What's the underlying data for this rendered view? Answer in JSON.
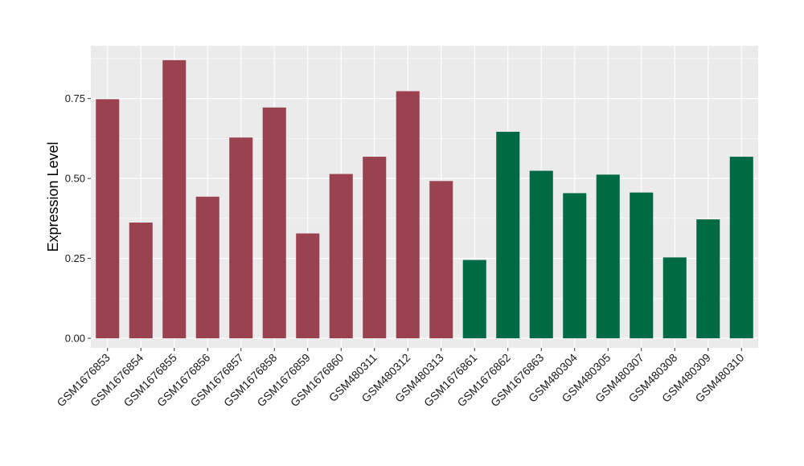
{
  "chart_data": {
    "type": "bar",
    "title": "",
    "xlabel": "",
    "ylabel": "Expression Level",
    "ylim": [
      -0.03,
      0.915
    ],
    "yticks": [
      0.0,
      0.25,
      0.5,
      0.75
    ],
    "ytick_labels": [
      "0.00",
      "0.25",
      "0.50",
      "0.75"
    ],
    "grid": true,
    "legend": "none",
    "categories": [
      "GSM1676853",
      "GSM1676854",
      "GSM1676855",
      "GSM1676856",
      "GSM1676857",
      "GSM1676858",
      "GSM1676859",
      "GSM1676860",
      "GSM480311",
      "GSM480312",
      "GSM480313",
      "GSM1676861",
      "GSM1676862",
      "GSM1676863",
      "GSM480304",
      "GSM480305",
      "GSM480307",
      "GSM480308",
      "GSM480309",
      "GSM480310"
    ],
    "values": [
      0.748,
      0.362,
      0.87,
      0.443,
      0.628,
      0.722,
      0.328,
      0.514,
      0.568,
      0.773,
      0.492,
      0.245,
      0.646,
      0.524,
      0.454,
      0.512,
      0.456,
      0.253,
      0.372,
      0.568
    ],
    "groups": [
      0,
      0,
      0,
      0,
      0,
      0,
      0,
      0,
      0,
      0,
      0,
      1,
      1,
      1,
      1,
      1,
      1,
      1,
      1,
      1
    ],
    "group_colors": [
      "#9b4250",
      "#006a45"
    ],
    "panel_background": "#ebebeb",
    "grid_color": "#ffffff"
  }
}
